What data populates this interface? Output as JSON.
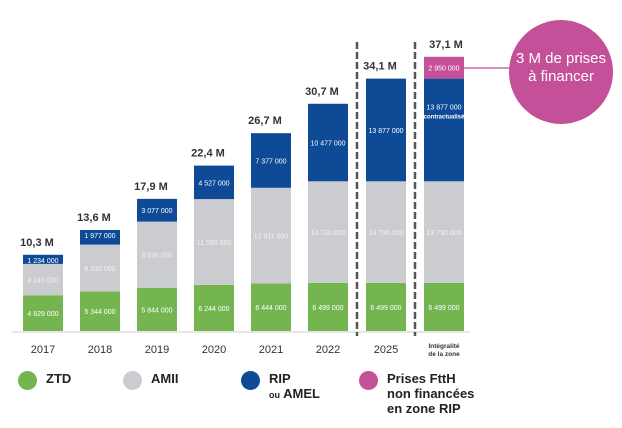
{
  "chart_data": {
    "type": "bar",
    "stacked": true,
    "categories": [
      "2017",
      "2018",
      "2019",
      "2020",
      "2021",
      "2022",
      "2025",
      "Intégralité de la zone"
    ],
    "category_lines": [
      [
        "2017"
      ],
      [
        "2018"
      ],
      [
        "2019"
      ],
      [
        "2020"
      ],
      [
        "2021"
      ],
      [
        "2022"
      ],
      [
        "2025"
      ],
      [
        "Intégralité",
        "de la zone"
      ]
    ],
    "totals": [
      "10,3 M",
      "13,6 M",
      "17,9 M",
      "22,4 M",
      "26,7 M",
      "30,7 M",
      "34,1 M",
      "37,1 M"
    ],
    "series": [
      {
        "name": "ZTD",
        "color": "#74b550",
        "values": [
          4829000,
          5344000,
          5844000,
          6244000,
          6444000,
          6499000,
          6499000,
          6499000
        ],
        "labels": [
          "4 829 000",
          "5 344 000",
          "5 844 000",
          "6 244 000",
          "6 444 000",
          "6 499 000",
          "6 499 000",
          "6 499 000"
        ]
      },
      {
        "name": "AMII",
        "color": "#cbccd0",
        "values": [
          4240000,
          6330000,
          8936000,
          11580000,
          12911000,
          13730000,
          13730000,
          13730000
        ],
        "labels": [
          "4 240 000",
          "6 330 000",
          "8 936 000",
          "11 580 000",
          "12 911 000",
          "13 730 000",
          "13 730 000",
          "13 730 000"
        ]
      },
      {
        "name": "RIP ou AMEL",
        "color": "#0e4a96",
        "values": [
          1234000,
          1977000,
          3077000,
          4527000,
          7377000,
          10477000,
          13877000,
          13877000
        ],
        "labels": [
          "1 234 000",
          "1 977 000",
          "3 077 000",
          "4 527 000",
          "7 377 000",
          "10 477 000",
          "13 877 000",
          "13 877 000"
        ]
      },
      {
        "name": "Prises FttH non financées en zone RIP",
        "color": "#c4509a",
        "values": [
          0,
          0,
          0,
          0,
          0,
          0,
          0,
          2950000
        ],
        "labels": [
          "",
          "",
          "",
          "",
          "",
          "",
          "",
          "2 950 000"
        ]
      }
    ],
    "annotations": {
      "contractualised": "contractualisé",
      "callout": [
        "3 M de prises",
        "à financer"
      ]
    },
    "grid": false,
    "legend_position": "bottom"
  },
  "legend": [
    {
      "lines": [
        "ZTD"
      ],
      "color": "#74b550"
    },
    {
      "lines": [
        "AMII"
      ],
      "color": "#cbccd0"
    },
    {
      "small": "ou",
      "lines": [
        "RIP",
        "AMEL"
      ],
      "color": "#0e4a96"
    },
    {
      "lines": [
        "Prises FttH",
        "non financées",
        "en zone RIP"
      ],
      "color": "#c4509a"
    }
  ]
}
